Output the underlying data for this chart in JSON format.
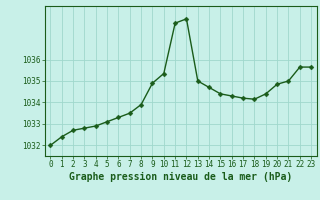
{
  "x": [
    0,
    1,
    2,
    3,
    4,
    5,
    6,
    7,
    8,
    9,
    10,
    11,
    12,
    13,
    14,
    15,
    16,
    17,
    18,
    19,
    20,
    21,
    22,
    23
  ],
  "y": [
    1032.0,
    1032.4,
    1032.7,
    1032.8,
    1032.9,
    1033.1,
    1033.3,
    1033.5,
    1033.9,
    1034.9,
    1035.35,
    1037.7,
    1037.9,
    1035.0,
    1034.7,
    1034.4,
    1034.3,
    1034.2,
    1034.15,
    1034.4,
    1034.85,
    1035.0,
    1035.65,
    1035.65
  ],
  "bg_color": "#c8f0e8",
  "line_color": "#1a5c1a",
  "marker_color": "#1a5c1a",
  "grid_color": "#a0d8cc",
  "axis_color": "#1a5c1a",
  "ylabel_ticks": [
    1032,
    1033,
    1034,
    1035,
    1036
  ],
  "xlabel": "Graphe pression niveau de la mer (hPa)",
  "ylim": [
    1031.5,
    1038.5
  ],
  "xlim": [
    -0.5,
    23.5
  ],
  "tick_fontsize": 5.5,
  "label_fontsize": 7,
  "line_width": 1.0,
  "marker_size": 2.5,
  "fig_width": 3.2,
  "fig_height": 2.0,
  "dpi": 100
}
